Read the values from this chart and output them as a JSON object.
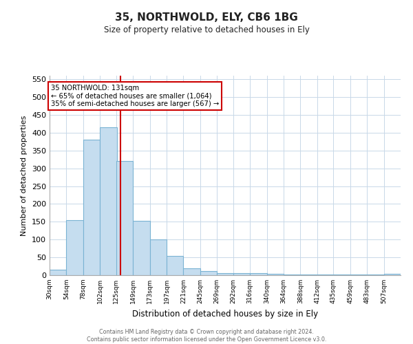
{
  "title": "35, NORTHWOLD, ELY, CB6 1BG",
  "subtitle": "Size of property relative to detached houses in Ely",
  "xlabel": "Distribution of detached houses by size in Ely",
  "ylabel": "Number of detached properties",
  "bar_color": "#c5ddef",
  "bar_edge_color": "#7ab3d3",
  "annotation_box_color": "#ffffff",
  "annotation_box_edge_color": "#cc0000",
  "vline_color": "#cc0000",
  "vline_x": 131,
  "annotation_text_line1": "35 NORTHWOLD: 131sqm",
  "annotation_text_line2": "← 65% of detached houses are smaller (1,064)",
  "annotation_text_line3": "35% of semi-detached houses are larger (567) →",
  "footnote_line1": "Contains HM Land Registry data © Crown copyright and database right 2024.",
  "footnote_line2": "Contains public sector information licensed under the Open Government Licence v3.0.",
  "bin_edges": [
    30,
    54,
    78,
    102,
    125,
    149,
    173,
    197,
    221,
    245,
    269,
    292,
    316,
    340,
    364,
    388,
    412,
    435,
    459,
    483,
    507
  ],
  "bin_labels": [
    "30sqm",
    "54sqm",
    "78sqm",
    "102sqm",
    "125sqm",
    "149sqm",
    "173sqm",
    "197sqm",
    "221sqm",
    "245sqm",
    "269sqm",
    "292sqm",
    "316sqm",
    "340sqm",
    "364sqm",
    "388sqm",
    "412sqm",
    "435sqm",
    "459sqm",
    "483sqm",
    "507sqm"
  ],
  "bar_heights": [
    15,
    155,
    380,
    415,
    320,
    153,
    100,
    55,
    20,
    12,
    5,
    5,
    5,
    4,
    2,
    2,
    2,
    2,
    2,
    2,
    4
  ],
  "ylim": [
    0,
    560
  ],
  "yticks": [
    0,
    50,
    100,
    150,
    200,
    250,
    300,
    350,
    400,
    450,
    500,
    550
  ],
  "background_color": "#ffffff",
  "grid_color": "#c8d8e8"
}
